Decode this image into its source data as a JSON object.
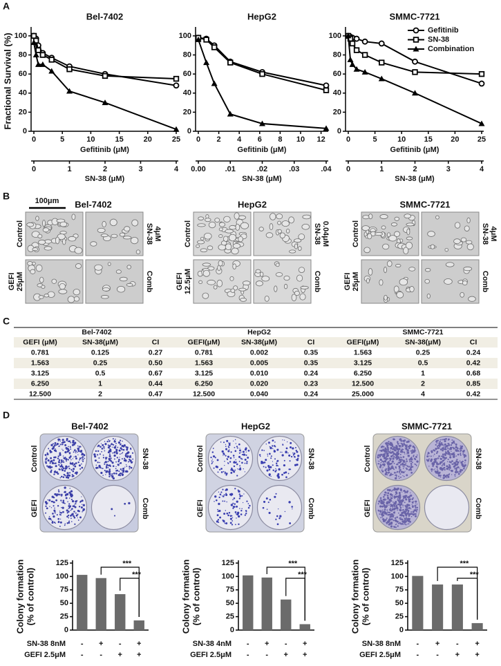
{
  "panel_labels": [
    "A",
    "B",
    "C",
    "D"
  ],
  "chart_data": [
    {
      "type": "line",
      "title": "Bel-7402",
      "ylabel": "Fractional Survival (%)",
      "xlabel": "Gefitinib (μM)",
      "x2label": "SN-38  (μM)",
      "x": [
        0,
        0.39,
        0.781,
        1.563,
        3.125,
        6.25,
        12.5,
        25
      ],
      "xlim": [
        0,
        25
      ],
      "xticks": [
        0,
        5,
        10,
        15,
        20,
        25
      ],
      "x2lim": [
        0,
        4
      ],
      "x2ticks": [
        0,
        1,
        2,
        3,
        4
      ],
      "ylim": [
        0,
        105
      ],
      "yticks": [
        0,
        20,
        40,
        60,
        80,
        100
      ],
      "series": [
        {
          "marker": "circle",
          "color": "#000000",
          "values": [
            100,
            97,
            90,
            82,
            77,
            68,
            60,
            48
          ]
        },
        {
          "marker": "square",
          "color": "#000000",
          "values": [
            100,
            95,
            85,
            80,
            75,
            65,
            58,
            55
          ]
        },
        {
          "marker": "triangle",
          "color": "#000000",
          "values": [
            93,
            80,
            70,
            70,
            63,
            42,
            30,
            2
          ]
        }
      ]
    },
    {
      "type": "line",
      "title": "HepG2",
      "xlabel": "Gefitinib (μM)",
      "x2label": "SN-38  (μM)",
      "x": [
        0,
        0.781,
        1.563,
        3.125,
        6.25,
        12.5
      ],
      "xlim": [
        0,
        12.5
      ],
      "xticks": [
        0,
        2,
        4,
        6,
        8,
        10,
        12
      ],
      "x2lim": [
        0,
        0.04
      ],
      "x2ticks": [
        {
          "value": 0,
          "label": "0.00"
        },
        {
          "value": 0.01,
          "label": ".01"
        },
        {
          "value": 0.02,
          "label": ".02"
        },
        {
          "value": 0.03,
          "label": ".03"
        },
        {
          "value": 0.04,
          "label": ".04"
        }
      ],
      "ylim": [
        0,
        105
      ],
      "yticks": [
        0,
        20,
        40,
        60,
        80,
        100
      ],
      "series": [
        {
          "marker": "circle",
          "color": "#000000",
          "values": [
            98,
            97,
            90,
            73,
            62,
            48
          ]
        },
        {
          "marker": "square",
          "color": "#000000",
          "values": [
            98,
            96,
            88,
            72,
            60,
            43
          ]
        },
        {
          "marker": "triangle",
          "color": "#000000",
          "values": [
            96,
            72,
            50,
            18,
            8,
            3
          ]
        }
      ]
    },
    {
      "type": "line",
      "title": "SMMC-7721",
      "legend": "upper right",
      "xlabel": "Gefitinib (μM)",
      "x2label": "SN-38  (μM)",
      "x": [
        0,
        0.39,
        0.781,
        1.563,
        3.125,
        6.25,
        12.5,
        25
      ],
      "xlim": [
        0,
        25
      ],
      "xticks": [
        0,
        5,
        10,
        15,
        20,
        25
      ],
      "x2lim": [
        0,
        4
      ],
      "x2ticks": [
        0,
        1,
        2,
        3,
        4
      ],
      "ylim": [
        0,
        105
      ],
      "yticks": [
        0,
        20,
        40,
        60,
        80,
        100
      ],
      "series": [
        {
          "name": "Gefitinib",
          "marker": "circle",
          "color": "#000000",
          "values": [
            100,
            99,
            98,
            97,
            94,
            92,
            73,
            50
          ]
        },
        {
          "name": "SN-38",
          "marker": "square",
          "color": "#000000",
          "values": [
            100,
            97,
            92,
            85,
            80,
            72,
            62,
            60
          ]
        },
        {
          "name": "Combination",
          "marker": "triangle",
          "color": "#000000",
          "values": [
            100,
            75,
            70,
            65,
            62,
            55,
            40,
            8
          ]
        }
      ]
    },
    {
      "type": "bar",
      "title": "Bel-7402",
      "ylabel": [
        "Colony formation",
        "(% of control)"
      ],
      "values": [
        103,
        97,
        67,
        18
      ],
      "color": "#6b6b6b",
      "ylim": [
        0,
        125
      ],
      "yticks": [
        0,
        25,
        50,
        75,
        100,
        125
      ],
      "conditions": [
        {
          "label": "SN-38 8nM",
          "marks": [
            "-",
            "+",
            "-",
            "+"
          ]
        },
        {
          "label": "GEFI 2.5μM",
          "marks": [
            "-",
            "-",
            "+",
            "+"
          ]
        }
      ],
      "annotations": [
        "***",
        "***"
      ]
    },
    {
      "type": "bar",
      "title": "HepG2",
      "ylabel": [
        "Colony formation",
        "(% of control)"
      ],
      "values": [
        102,
        98,
        57,
        11
      ],
      "color": "#6b6b6b",
      "ylim": [
        0,
        125
      ],
      "yticks": [
        0,
        25,
        50,
        75,
        100,
        125
      ],
      "conditions": [
        {
          "label": "SN-38 4nM",
          "marks": [
            "-",
            "+",
            "-",
            "+"
          ]
        },
        {
          "label": "GEFI 2.5μM",
          "marks": [
            "-",
            "-",
            "+",
            "+"
          ]
        }
      ],
      "annotations": [
        "***",
        "***"
      ]
    },
    {
      "type": "bar",
      "title": "SMMC-7721",
      "ylabel": [
        "Colony formation",
        "(% of control)"
      ],
      "values": [
        101,
        85,
        85,
        13
      ],
      "color": "#6b6b6b",
      "ylim": [
        0,
        125
      ],
      "yticks": [
        0,
        25,
        50,
        75,
        100,
        125
      ],
      "conditions": [
        {
          "label": "SN-38 8nM",
          "marks": [
            "-",
            "+",
            "-",
            "+"
          ]
        },
        {
          "label": "GEFI 2.5μM",
          "marks": [
            "-",
            "-",
            "+",
            "+"
          ]
        }
      ],
      "annotations": [
        "***",
        "***"
      ]
    }
  ],
  "micrographs": {
    "scale_bar": "100μm",
    "panels": [
      {
        "title": "Bel-7402",
        "labels": [
          [
            "Control"
          ],
          [
            "SN-38",
            "4μM"
          ],
          [
            "GEFI",
            "25μM"
          ],
          [
            "Comb"
          ]
        ]
      },
      {
        "title": "HepG2",
        "labels": [
          [
            "Control"
          ],
          [
            "SN-38",
            "0.04μM"
          ],
          [
            "GEFI",
            "12.5μM"
          ],
          [
            "Comb"
          ]
        ]
      },
      {
        "title": "SMMC-7721",
        "labels": [
          [
            "Control"
          ],
          [
            "SN-38",
            "4μM"
          ],
          [
            "GEFI",
            "25μM"
          ],
          [
            "Comb"
          ]
        ]
      }
    ]
  },
  "table": {
    "groups": [
      "Bel-7402",
      "HepG2",
      "SMMC-7721"
    ],
    "header": [
      "GEFI (μM)",
      "SN-38(μM)",
      "CI",
      "GEFI(μM)",
      "SN-38(μM)",
      "CI",
      "GEFI(μM)",
      "SN-38(μM)",
      "CI"
    ],
    "rows": [
      [
        "0.781",
        "0.125",
        "0.27",
        "0.781",
        "0.002",
        "0.35",
        "1.563",
        "0.25",
        "0.24"
      ],
      [
        "1.563",
        "0.25",
        "0.50",
        "1.563",
        "0.005",
        "0.35",
        "3.125",
        "0.5",
        "0.42"
      ],
      [
        "3.125",
        "0.5",
        "0.67",
        "3.125",
        "0.010",
        "0.24",
        "6.250",
        "1",
        "0.68"
      ],
      [
        "6.250",
        "1",
        "0.44",
        "6.250",
        "0.020",
        "0.23",
        "12.500",
        "2",
        "0.85"
      ],
      [
        "12.500",
        "2",
        "0.47",
        "12.500",
        "0.040",
        "0.24",
        "25.000",
        "4",
        "0.42"
      ]
    ]
  },
  "plates": [
    {
      "title": "Bel-7402",
      "labels": [
        "Control",
        "SN-38",
        "GEFI",
        "Comb"
      ]
    },
    {
      "title": "HepG2",
      "labels": [
        "Control",
        "SN-38",
        "GEFI",
        "Comb"
      ]
    },
    {
      "title": "SMMC-7721",
      "labels": [
        "Control",
        "SN-38",
        "GEFI",
        "Comb"
      ]
    }
  ]
}
